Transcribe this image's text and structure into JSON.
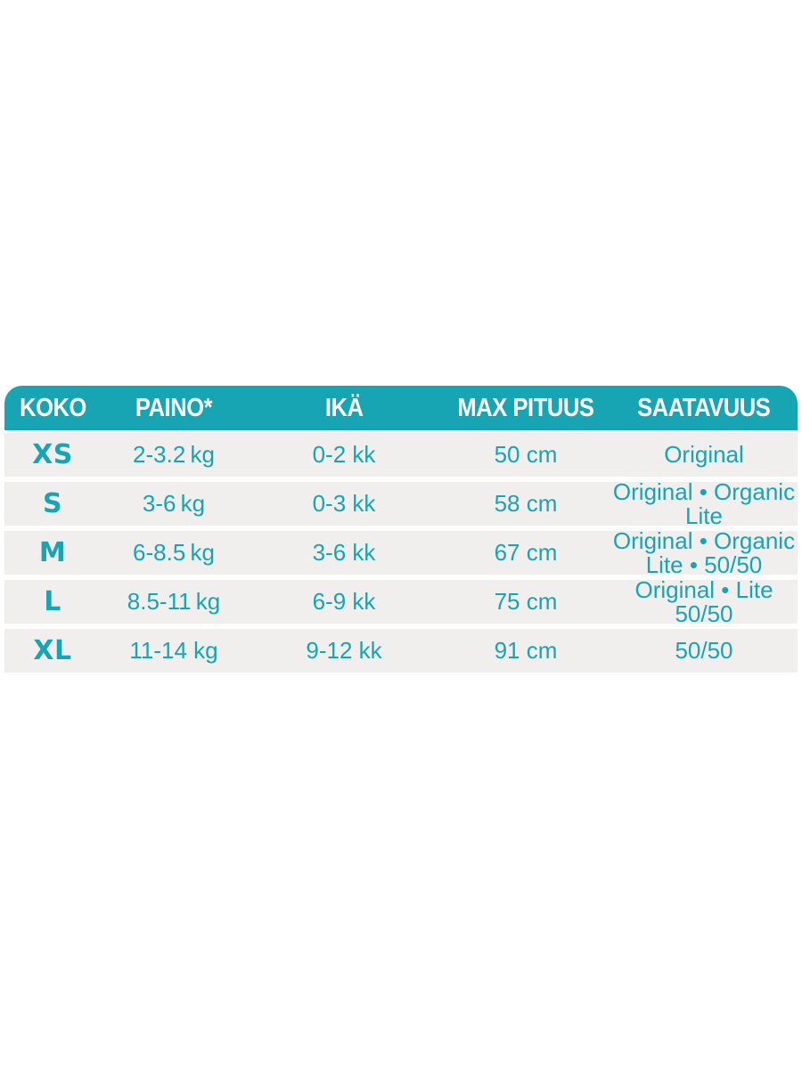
{
  "colors": {
    "accent": "#18a5b3",
    "row_background": "#f0efed",
    "header_text": "#ffffff",
    "page_background": "#ffffff"
  },
  "table": {
    "columns": [
      {
        "key": "koko",
        "label": "KOKO"
      },
      {
        "key": "paino",
        "label": "PAINO*"
      },
      {
        "key": "ika",
        "label": "IKÄ"
      },
      {
        "key": "max_pituus",
        "label": "MAX PITUUS"
      },
      {
        "key": "saatavuus",
        "label": "SAATAVUUS"
      }
    ],
    "rows": [
      {
        "koko": "XS",
        "paino": "2-3.2 kg",
        "ika": "0-2 kk",
        "max_pituus": "50 cm",
        "saatavuus": [
          "Original"
        ]
      },
      {
        "koko": "S",
        "paino": "3-6 kg",
        "ika": "0-3 kk",
        "max_pituus": "58 cm",
        "saatavuus": [
          "Original • Organic",
          "Lite"
        ]
      },
      {
        "koko": "M",
        "paino": "6-8.5 kg",
        "ika": "3-6 kk",
        "max_pituus": "67 cm",
        "saatavuus": [
          "Original • Organic",
          "Lite • 50/50"
        ]
      },
      {
        "koko": "L",
        "paino": "8.5-11 kg",
        "ika": "6-9 kk",
        "max_pituus": "75 cm",
        "saatavuus": [
          "Original • Lite",
          "50/50"
        ]
      },
      {
        "koko": "XL",
        "paino": "11-14 kg",
        "ika": "9-12 kk",
        "max_pituus": "91 cm",
        "saatavuus": [
          "50/50"
        ]
      }
    ]
  },
  "chart_data": {
    "type": "table",
    "title": "",
    "columns": [
      "KOKO",
      "PAINO*",
      "IKÄ",
      "MAX PITUUS",
      "SAATAVUUS"
    ],
    "rows": [
      [
        "XS",
        "2-3.2 kg",
        "0-2 kk",
        "50 cm",
        [
          "Original"
        ]
      ],
      [
        "S",
        "3-6 kg",
        "0-3 kk",
        "58 cm",
        [
          "Original • Organic",
          "Lite"
        ]
      ],
      [
        "M",
        "6-8.5 kg",
        "3-6 kk",
        "67 cm",
        [
          "Original • Organic",
          "Lite • 50/50"
        ]
      ],
      [
        "L",
        "8.5-11 kg",
        "6-9 kk",
        "75 cm",
        [
          "Original • Lite",
          "50/50"
        ]
      ],
      [
        "XL",
        "11-14 kg",
        "9-12 kk",
        "91 cm",
        [
          "50/50"
        ]
      ]
    ],
    "layout_hints": {
      "header_background": "#18a5b3",
      "row_background": "#f0efed",
      "text_color": "#18a5b3",
      "rounded_top_corners": true,
      "row_separator": "white-gap"
    }
  }
}
